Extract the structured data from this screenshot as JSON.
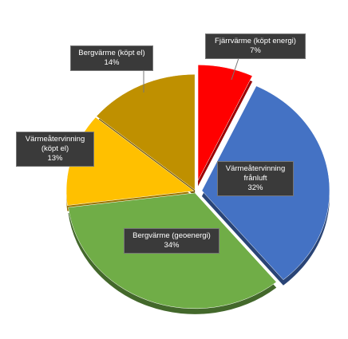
{
  "chart_data": {
    "type": "pie",
    "categories": [
      "Fjärrvärme (köpt energi)",
      "Värmeåtervinning frånluft",
      "Bergvärme (geoenergi)",
      "Värmeåtervinning (köpt el)",
      "Bergvärme (köpt el)"
    ],
    "values": [
      7,
      32,
      34,
      13,
      14
    ],
    "value_labels": [
      "7%",
      "32%",
      "34%",
      "13%",
      "14%"
    ],
    "colors": [
      "#ff0000",
      "#4472c4",
      "#70ad47",
      "#ffc000",
      "#bf9000"
    ]
  }
}
